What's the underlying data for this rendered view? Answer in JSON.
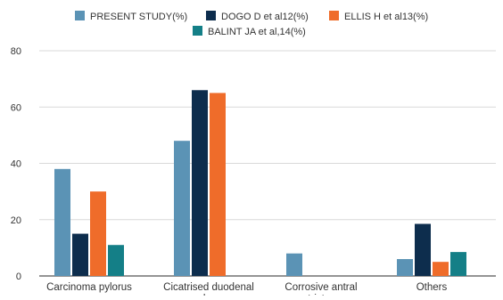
{
  "chart_data": {
    "type": "bar",
    "title": "",
    "xlabel": "",
    "ylabel": "",
    "categories": [
      "Carcinoma pylorus",
      "Cicatrised duodenal ulcer",
      "Corrosive antral stricture",
      "Others"
    ],
    "category_label_lines": [
      [
        "Carcinoma pylorus"
      ],
      [
        "Cicatrised duodenal",
        "ulcer"
      ],
      [
        "Corrosive antral",
        "stricture"
      ],
      [
        "Others"
      ]
    ],
    "series": [
      {
        "name": "PRESENT STUDY(%)",
        "color": "#5b93b5",
        "values": [
          38,
          48,
          8,
          6
        ]
      },
      {
        "name": "DOGO D et al12(%)",
        "color": "#0d2d4d",
        "values": [
          15,
          66,
          0,
          18.5
        ]
      },
      {
        "name": "ELLIS H et al13(%)",
        "color": "#ef6c2a",
        "values": [
          30,
          65,
          0,
          5
        ]
      },
      {
        "name": "BALINT JA et al,14(%)",
        "color": "#147f87",
        "values": [
          11,
          0,
          0,
          8.5
        ]
      }
    ],
    "ylim": [
      0,
      80
    ],
    "yticks": [
      0,
      20,
      40,
      60,
      80
    ],
    "ytick_labels": [
      "0",
      "20",
      "40",
      "60",
      "80"
    ],
    "grid": true,
    "legend_position": "top",
    "colors": {
      "grid": "#d9d9d9",
      "axis": "#555555",
      "text": "#333333"
    }
  }
}
